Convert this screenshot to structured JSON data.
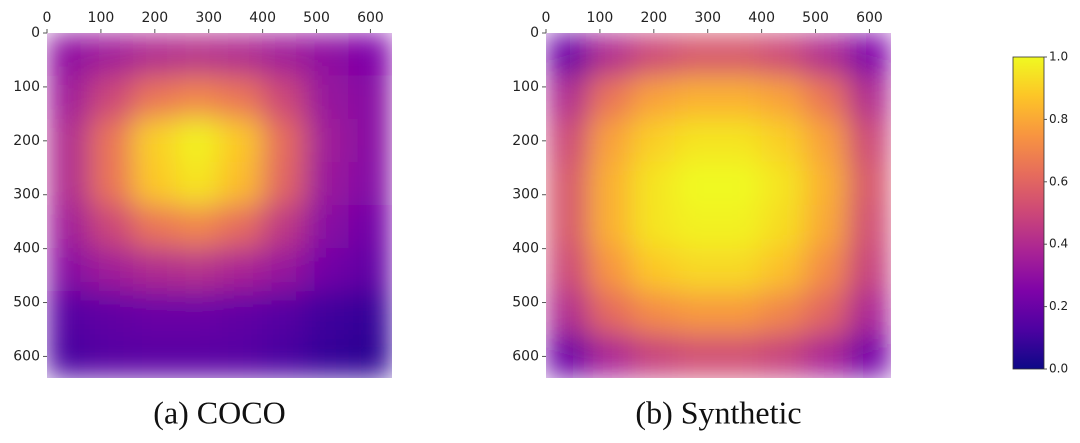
{
  "chart_data": [
    {
      "type": "heatmap",
      "title": "(a) COCO",
      "colormap": "plasma",
      "xlim": [
        0,
        640
      ],
      "ylim": [
        0,
        640
      ],
      "xticks": [
        0,
        100,
        200,
        300,
        400,
        500,
        600
      ],
      "yticks": [
        0,
        100,
        200,
        300,
        400,
        500,
        600
      ],
      "z": [
        [
          0.3,
          0.35,
          0.4,
          0.42,
          0.4,
          0.35,
          0.3,
          0.25
        ],
        [
          0.35,
          0.5,
          0.65,
          0.7,
          0.65,
          0.5,
          0.32,
          0.28
        ],
        [
          0.4,
          0.65,
          0.9,
          0.98,
          0.88,
          0.62,
          0.35,
          0.28
        ],
        [
          0.4,
          0.65,
          0.88,
          0.95,
          0.85,
          0.6,
          0.33,
          0.27
        ],
        [
          0.35,
          0.5,
          0.65,
          0.7,
          0.62,
          0.45,
          0.28,
          0.22
        ],
        [
          0.28,
          0.35,
          0.4,
          0.42,
          0.38,
          0.32,
          0.22,
          0.18
        ],
        [
          0.15,
          0.18,
          0.2,
          0.2,
          0.18,
          0.15,
          0.1,
          0.08
        ],
        [
          0.12,
          0.15,
          0.16,
          0.16,
          0.15,
          0.12,
          0.08,
          0.06
        ]
      ]
    },
    {
      "type": "heatmap",
      "title": "(b) Synthetic",
      "colormap": "plasma",
      "xlim": [
        0,
        640
      ],
      "ylim": [
        0,
        640
      ],
      "xticks": [
        0,
        100,
        200,
        300,
        400,
        500,
        600
      ],
      "yticks": [
        0,
        100,
        200,
        300,
        400,
        500,
        600
      ],
      "z": [
        [
          0.2,
          0.4,
          0.5,
          0.55,
          0.55,
          0.5,
          0.4,
          0.25
        ],
        [
          0.4,
          0.65,
          0.78,
          0.82,
          0.82,
          0.78,
          0.65,
          0.4
        ],
        [
          0.5,
          0.78,
          0.9,
          0.95,
          0.95,
          0.9,
          0.78,
          0.5
        ],
        [
          0.55,
          0.82,
          0.95,
          1.0,
          1.0,
          0.95,
          0.82,
          0.55
        ],
        [
          0.55,
          0.82,
          0.95,
          0.98,
          0.98,
          0.93,
          0.8,
          0.52
        ],
        [
          0.5,
          0.75,
          0.88,
          0.92,
          0.92,
          0.86,
          0.72,
          0.48
        ],
        [
          0.4,
          0.62,
          0.72,
          0.76,
          0.76,
          0.7,
          0.6,
          0.38
        ],
        [
          0.2,
          0.38,
          0.48,
          0.52,
          0.52,
          0.48,
          0.38,
          0.22
        ]
      ]
    }
  ],
  "colorbar": {
    "colormap": "plasma",
    "lim": [
      0,
      1
    ],
    "ticks": [
      {
        "value": 0,
        "label": "0.0"
      },
      0.2,
      0.4,
      0.6,
      0.8,
      {
        "value": 1,
        "label": "1.0"
      }
    ]
  }
}
